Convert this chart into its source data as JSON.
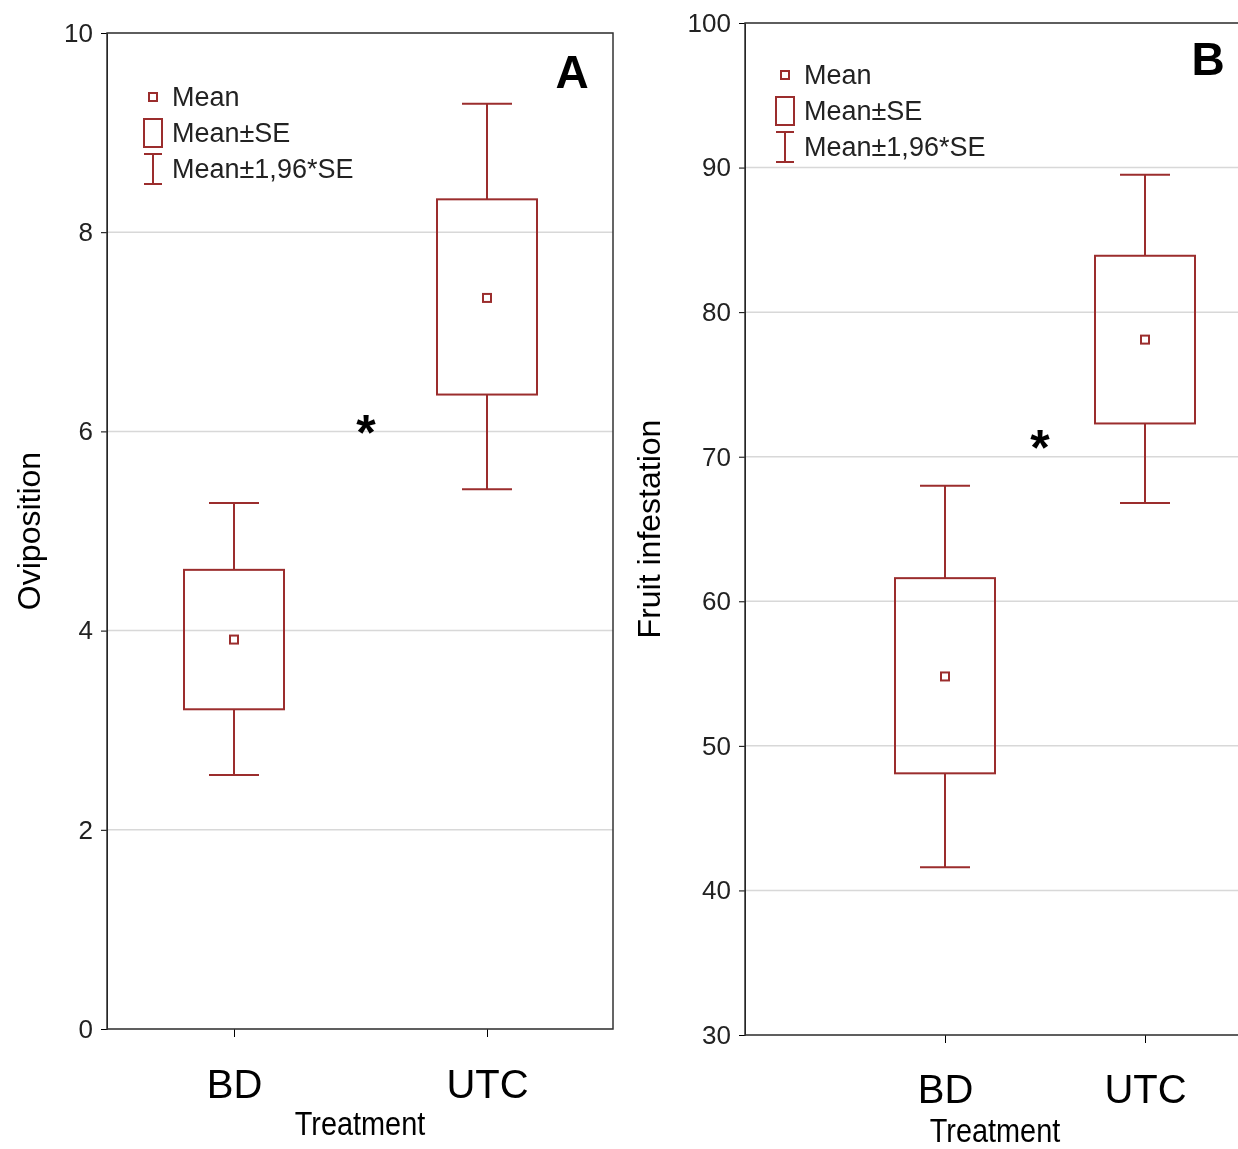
{
  "chart_data": [
    {
      "type": "box",
      "title": "A",
      "xlabel": "Treatment",
      "ylabel": "Oviposition",
      "categories": [
        "BD",
        "UTC"
      ],
      "ylim": [
        0,
        10
      ],
      "yticks": [
        0,
        2,
        4,
        6,
        8,
        10
      ],
      "grid": "y",
      "color": "#9b2d2d",
      "boxes": [
        {
          "low": 2.55,
          "q1": 3.21,
          "mean": 3.91,
          "q3": 4.61,
          "high": 5.28
        },
        {
          "low": 5.42,
          "q1": 6.37,
          "mean": 7.34,
          "q3": 8.33,
          "high": 9.29
        }
      ],
      "annotations": [
        "Mean",
        "Mean±SE",
        "Mean±1,96*SE",
        "*"
      ]
    },
    {
      "type": "box",
      "title": "B",
      "xlabel": "Treatment",
      "ylabel": "Fruit infestation",
      "categories": [
        "BD",
        "UTC"
      ],
      "ylim": [
        30,
        100
      ],
      "yticks": [
        30,
        40,
        50,
        60,
        70,
        80,
        90,
        100
      ],
      "grid": "y",
      "color": "#9b2d2d",
      "boxes": [
        {
          "low": 41.6,
          "q1": 48.1,
          "mean": 54.8,
          "q3": 61.6,
          "high": 68.0
        },
        {
          "low": 66.8,
          "q1": 72.3,
          "mean": 78.1,
          "q3": 83.9,
          "high": 89.5
        }
      ],
      "annotations": [
        "Mean",
        "Mean±SE",
        "Mean±1,96*SE",
        "*"
      ]
    }
  ]
}
